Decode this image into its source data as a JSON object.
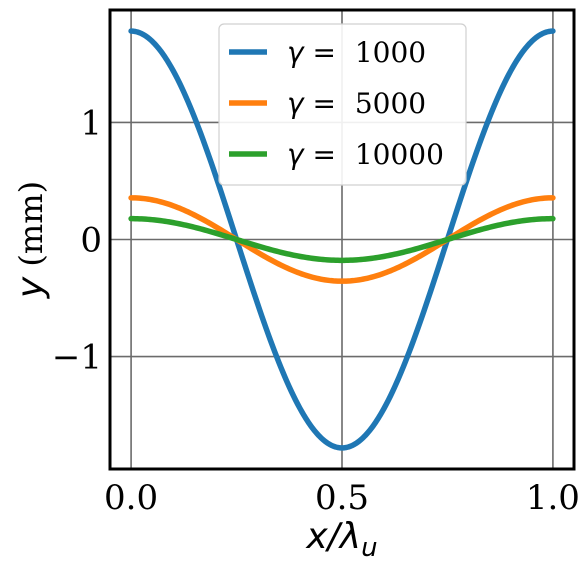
{
  "chart_data": {
    "type": "line",
    "xlabel": {
      "main": "x/λ",
      "sub": "u"
    },
    "ylabel": {
      "var": "y",
      "unit": " (mm)"
    },
    "xlim": [
      -0.05,
      1.05
    ],
    "ylim": [
      -1.96,
      1.96
    ],
    "x_ticks": [
      0.0,
      0.5,
      1.0
    ],
    "x_tick_labels": [
      "0.0",
      "0.5",
      "1.0"
    ],
    "y_ticks": [
      -1,
      0,
      1
    ],
    "y_tick_labels": [
      "−1",
      "0",
      "1"
    ],
    "grid": true,
    "legend_position": "top-center",
    "series": [
      {
        "name": "1000",
        "label_prefix": "γ = ",
        "amplitude": 1.78,
        "color": "#1f77b4",
        "function": "A*cos(2*pi*x)"
      },
      {
        "name": "5000",
        "label_prefix": "γ = ",
        "amplitude": 0.356,
        "color": "#ff7f0e",
        "function": "A*cos(2*pi*x)"
      },
      {
        "name": "10000",
        "label_prefix": "γ = ",
        "amplitude": 0.178,
        "color": "#2ca02c",
        "function": "A*cos(2*pi*x)"
      }
    ]
  }
}
